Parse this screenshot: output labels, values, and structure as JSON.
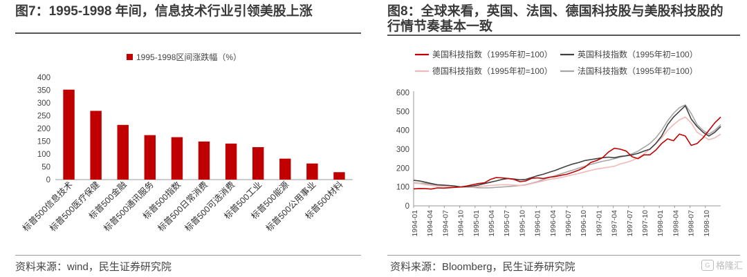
{
  "left": {
    "figure_title": "图7：1995-1998 年间，信息技术行业引领美股上涨",
    "source": "资料来源：wind，民生证券研究院"
  },
  "right": {
    "figure_title": "图8：全球来看，英国、法国、德国科技股与美股科技股的行情节奏基本一致",
    "source": "资料来源：Bloomberg，民生证券研究院"
  },
  "watermark": {
    "text": "格隆汇",
    "icon": "logo-badge-icon",
    "icon_glyph": "G"
  },
  "chart_data": [
    {
      "type": "bar",
      "legend": "1995-1998区间涨跌幅（%）",
      "legend_position": "top-center",
      "categories": [
        "标普500信息技术",
        "标普500医疗保健",
        "标普500金融",
        "标普500通讯服务",
        "标普500指数",
        "标普500日常消费",
        "标普500可选消费",
        "标普500工业",
        "标普500能源",
        "标普500公用事业",
        "标普500材料"
      ],
      "values": [
        352,
        269,
        214,
        174,
        166,
        149,
        141,
        127,
        82,
        63,
        29
      ],
      "ylim": [
        0,
        400
      ],
      "yticks": [
        0,
        50,
        100,
        150,
        200,
        250,
        300,
        350,
        400
      ],
      "grid": false,
      "color": "#c00000"
    },
    {
      "type": "line",
      "ylim": [
        0,
        600
      ],
      "yticks": [
        0,
        100,
        200,
        300,
        400,
        500,
        600
      ],
      "xticks": [
        "1994-01",
        "1994-04",
        "1994-07",
        "1994-10",
        "1995-01",
        "1995-04",
        "1995-07",
        "1995-10",
        "1996-01",
        "1996-04",
        "1996-07",
        "1996-10",
        "1997-01",
        "1997-04",
        "1997-07",
        "1997-10",
        "1998-01",
        "1998-04",
        "1998-07",
        "1998-10"
      ],
      "grid": false,
      "legend_position": "top",
      "series": [
        {
          "name": "美国科技指数（1995年初=100）",
          "color": "#c00000",
          "values": [
            90,
            92,
            91,
            89,
            95,
            94,
            96,
            98,
            100,
            105,
            112,
            118,
            122,
            140,
            150,
            148,
            145,
            140,
            128,
            132,
            146,
            148,
            145,
            152,
            155,
            162,
            168,
            178,
            190,
            205,
            230,
            240,
            255,
            285,
            305,
            300,
            290,
            260,
            250,
            270,
            270,
            295,
            330,
            355,
            345,
            380,
            370,
            320,
            330,
            360,
            400,
            440,
            470
          ]
        },
        {
          "name": "英国科技指数（1995年初=100）",
          "color": "#404040",
          "values": [
            135,
            132,
            125,
            118,
            112,
            110,
            108,
            105,
            100,
            102,
            105,
            110,
            118,
            125,
            132,
            140,
            145,
            142,
            138,
            140,
            150,
            160,
            168,
            178,
            188,
            200,
            212,
            222,
            230,
            240,
            245,
            250,
            255,
            258,
            255,
            262,
            265,
            270,
            278,
            290,
            300,
            330,
            370,
            430,
            470,
            500,
            530,
            460,
            420,
            390,
            370,
            390,
            420
          ]
        },
        {
          "name": "德国科技指数（1995年初=100）",
          "color": "#f2b8b8",
          "values": [
            120,
            118,
            112,
            108,
            105,
            104,
            102,
            100,
            100,
            101,
            100,
            102,
            105,
            108,
            110,
            112,
            112,
            110,
            108,
            110,
            118,
            125,
            132,
            140,
            145,
            150,
            158,
            165,
            172,
            180,
            188,
            195,
            200,
            205,
            210,
            222,
            230,
            240,
            255,
            275,
            300,
            330,
            360,
            400,
            430,
            455,
            470,
            440,
            390,
            370,
            350,
            360,
            380
          ]
        },
        {
          "name": "法国科技指数（1995年初=100）",
          "color": "#a6a6a6",
          "values": [
            122,
            120,
            118,
            114,
            110,
            108,
            106,
            102,
            100,
            99,
            98,
            96,
            95,
            96,
            98,
            100,
            102,
            105,
            108,
            112,
            120,
            128,
            140,
            150,
            160,
            170,
            180,
            190,
            200,
            210,
            220,
            228,
            236,
            242,
            250,
            258,
            266,
            276,
            290,
            310,
            330,
            360,
            400,
            450,
            490,
            520,
            535,
            490,
            430,
            400,
            380,
            400,
            430
          ]
        }
      ]
    }
  ]
}
